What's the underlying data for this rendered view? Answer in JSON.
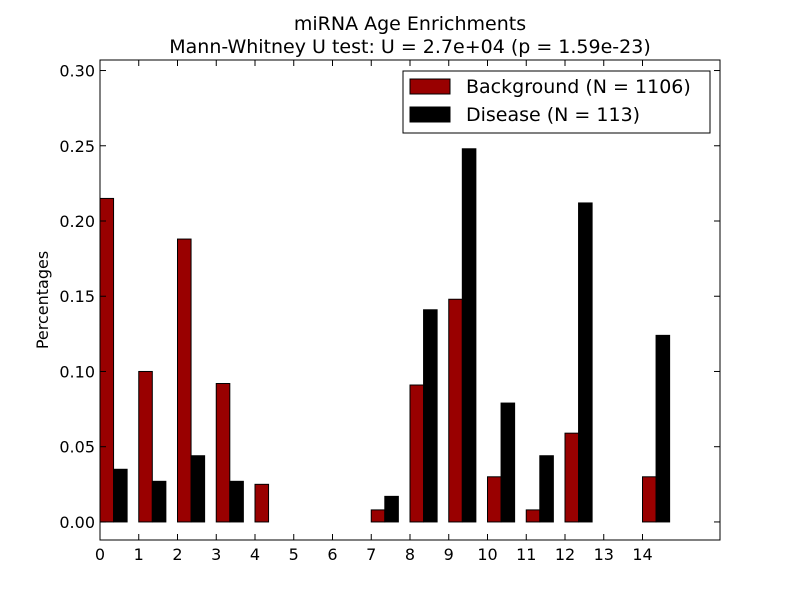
{
  "chart_data": {
    "type": "bar",
    "title": "miRNA Age Enrichments",
    "subtitle": "Mann-Whitney U test: U = 2.7e+04 (p = 1.59e-23)",
    "xlabel": "",
    "ylabel": "Percentages",
    "ylim": [
      -0.012,
      0.307
    ],
    "xlim": [
      0,
      16
    ],
    "yticks": [
      "0.00",
      "0.05",
      "0.10",
      "0.15",
      "0.20",
      "0.25",
      "0.30"
    ],
    "xticks": [
      "0",
      "1",
      "2",
      "3",
      "4",
      "5",
      "6",
      "7",
      "8",
      "9",
      "10",
      "11",
      "12",
      "13",
      "14"
    ],
    "categories": [
      "0",
      "1",
      "2",
      "3",
      "4",
      "5",
      "6",
      "7",
      "8",
      "9",
      "10",
      "11",
      "12",
      "13",
      "14"
    ],
    "bar_width": 0.35,
    "grid": false,
    "legend_position": "top-right",
    "series": [
      {
        "name": "Background (N = 1106)",
        "color": "#990000",
        "values": [
          0.215,
          0.1,
          0.188,
          0.092,
          0.025,
          0.0,
          0.0,
          0.008,
          0.091,
          0.148,
          0.03,
          0.008,
          0.059,
          0.0,
          0.03
        ]
      },
      {
        "name": "Disease (N = 113)",
        "color": "#000000",
        "values": [
          0.035,
          0.027,
          0.044,
          0.027,
          0.0,
          0.0,
          0.0,
          0.017,
          0.141,
          0.248,
          0.079,
          0.044,
          0.212,
          0.0,
          0.124
        ]
      }
    ]
  }
}
